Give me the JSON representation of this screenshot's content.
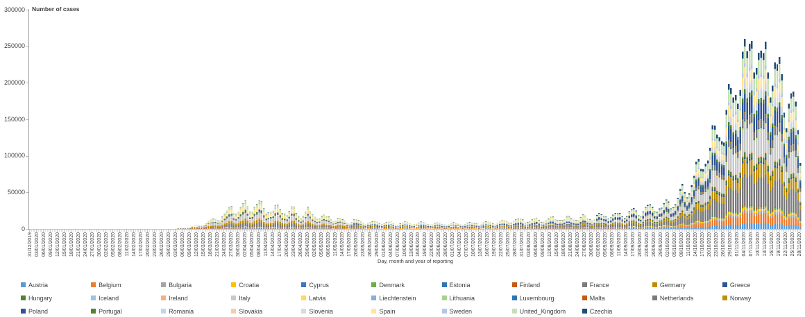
{
  "chart_data": {
    "type": "bar",
    "stacked": true,
    "ylabel": "Number of cases",
    "xlabel": "Day, month and year of reporting",
    "ylim": [
      0,
      300000
    ],
    "yticks": [
      0,
      50000,
      100000,
      150000,
      200000,
      250000,
      300000
    ],
    "grid": false,
    "legend_position": "bottom",
    "categories": [
      "31/12/2019",
      "03/01/2020",
      "06/01/2020",
      "09/01/2020",
      "12/01/2020",
      "15/01/2020",
      "18/01/2020",
      "21/01/2020",
      "24/01/2020",
      "27/01/2020",
      "30/01/2020",
      "02/02/2020",
      "05/02/2020",
      "08/02/2020",
      "11/02/2020",
      "14/02/2020",
      "17/02/2020",
      "20/02/2020",
      "23/02/2020",
      "26/02/2020",
      "29/02/2020",
      "03/03/2020",
      "06/03/2020",
      "09/03/2020",
      "12/03/2020",
      "15/03/2020",
      "18/03/2020",
      "21/03/2020",
      "24/03/2020",
      "27/03/2020",
      "30/03/2020",
      "02/04/2020",
      "05/04/2020",
      "08/04/2020",
      "11/04/2020",
      "14/04/2020",
      "17/04/2020",
      "20/04/2020",
      "23/04/2020",
      "26/04/2020",
      "29/04/2020",
      "02/05/2020",
      "05/05/2020",
      "08/05/2020",
      "11/05/2020",
      "14/05/2020",
      "17/05/2020",
      "20/05/2020",
      "23/05/2020",
      "26/05/2020",
      "29/05/2020",
      "01/06/2020",
      "04/06/2020",
      "07/06/2020",
      "10/06/2020",
      "13/06/2020",
      "16/06/2020",
      "19/06/2020",
      "22/06/2020",
      "25/06/2020",
      "28/06/2020",
      "01/07/2020",
      "04/07/2020",
      "07/07/2020",
      "10/07/2020",
      "13/07/2020",
      "16/07/2020",
      "19/07/2020",
      "22/07/2020",
      "25/07/2020",
      "28/07/2020",
      "31/07/2020",
      "03/08/2020",
      "06/08/2020",
      "09/08/2020",
      "12/08/2020",
      "15/08/2020",
      "18/08/2020",
      "21/08/2020",
      "24/08/2020",
      "27/08/2020",
      "30/08/2020",
      "02/09/2020",
      "05/09/2020",
      "08/09/2020",
      "11/09/2020",
      "14/09/2020",
      "17/09/2020",
      "20/09/2020",
      "23/09/2020",
      "26/09/2020",
      "29/09/2020",
      "02/10/2020",
      "05/10/2020",
      "08/10/2020",
      "11/10/2020",
      "14/10/2020",
      "17/10/2020",
      "20/10/2020",
      "23/10/2020",
      "26/10/2020",
      "29/10/2020",
      "01/11/2020",
      "04/11/2020",
      "07/11/2020",
      "10/11/2020",
      "13/11/2020",
      "16/11/2020",
      "19/11/2020",
      "22/11/2020",
      "25/11/2020",
      "28/11/2020"
    ],
    "totals": [
      0,
      0,
      0,
      0,
      0,
      0,
      1,
      2,
      3,
      5,
      8,
      10,
      12,
      14,
      15,
      12,
      10,
      14,
      70,
      180,
      400,
      800,
      1600,
      2800,
      4500,
      7000,
      11000,
      15000,
      18000,
      30000,
      24000,
      33000,
      29000,
      33500,
      27000,
      24000,
      30000,
      21000,
      27000,
      17500,
      24000,
      19000,
      15500,
      17500,
      12500,
      12000,
      9500,
      11500,
      9500,
      8500,
      9800,
      7800,
      8800,
      7200,
      8500,
      8200,
      7400,
      8600,
      7000,
      7600,
      6800,
      7400,
      7800,
      7200,
      8400,
      7600,
      9200,
      8200,
      10200,
      10800,
      11400,
      12600,
      11000,
      13200,
      11800,
      14000,
      14800,
      12600,
      16200,
      13400,
      16800,
      14200,
      17400,
      19600,
      16400,
      21500,
      18500,
      25500,
      22000,
      28500,
      30500,
      26500,
      38000,
      34000,
      52000,
      56000,
      76000,
      96000,
      105000,
      140000,
      132000,
      185000,
      195000,
      232000,
      263000,
      215000,
      247000,
      198000,
      222000,
      165000,
      176000,
      112000
    ],
    "countries": [
      {
        "name": "Austria",
        "color": "#5B9BD5"
      },
      {
        "name": "Belgium",
        "color": "#ED7D31"
      },
      {
        "name": "Bulgaria",
        "color": "#A5A5A5"
      },
      {
        "name": "Croatia",
        "color": "#FFC000"
      },
      {
        "name": "Cyprus",
        "color": "#4472C4"
      },
      {
        "name": "Denmark",
        "color": "#70AD47"
      },
      {
        "name": "Estonia",
        "color": "#2E75B6"
      },
      {
        "name": "Finland",
        "color": "#C55A11"
      },
      {
        "name": "France",
        "color": "#7B7B7B"
      },
      {
        "name": "Germany",
        "color": "#BF8F00"
      },
      {
        "name": "Greece",
        "color": "#2F5597"
      },
      {
        "name": "Hungary",
        "color": "#548235"
      },
      {
        "name": "Iceland",
        "color": "#9DC3E6"
      },
      {
        "name": "Ireland",
        "color": "#F4B183"
      },
      {
        "name": "Italy",
        "color": "#C9C9C9"
      },
      {
        "name": "Latvia",
        "color": "#FFD966"
      },
      {
        "name": "Liechtenstein",
        "color": "#8FAADC"
      },
      {
        "name": "Lithuania",
        "color": "#A9D18E"
      },
      {
        "name": "Luxembourg",
        "color": "#2E75B6"
      },
      {
        "name": "Malta",
        "color": "#C55A11"
      },
      {
        "name": "Netherlands",
        "color": "#7B7B7B"
      },
      {
        "name": "Norway",
        "color": "#BF8F00"
      },
      {
        "name": "Poland",
        "color": "#2F5597"
      },
      {
        "name": "Portugal",
        "color": "#548235"
      },
      {
        "name": "Romania",
        "color": "#BDD7EE"
      },
      {
        "name": "Slovakia",
        "color": "#F8CBAD"
      },
      {
        "name": "Slovenia",
        "color": "#DBDBDB"
      },
      {
        "name": "Spain",
        "color": "#FFE699"
      },
      {
        "name": "Sweden",
        "color": "#B4C7E7"
      },
      {
        "name": "United_Kingdom",
        "color": "#C5E0B4"
      },
      {
        "name": "Czechia",
        "color": "#1F4E79"
      }
    ],
    "shares": {
      "spring": [
        0.02,
        0.045,
        0.002,
        0.003,
        0.001,
        0.008,
        0.002,
        0.004,
        0.14,
        0.12,
        0.002,
        0.003,
        0.003,
        0.03,
        0.18,
        0.001,
        0.0,
        0.002,
        0.004,
        0.001,
        0.045,
        0.008,
        0.015,
        0.03,
        0.012,
        0.002,
        0.002,
        0.18,
        0.025,
        0.1,
        0.01
      ],
      "summer": [
        0.025,
        0.04,
        0.015,
        0.02,
        0.002,
        0.01,
        0.002,
        0.004,
        0.15,
        0.09,
        0.015,
        0.005,
        0.002,
        0.01,
        0.03,
        0.002,
        0.0,
        0.005,
        0.01,
        0.003,
        0.05,
        0.008,
        0.06,
        0.025,
        0.11,
        0.005,
        0.005,
        0.18,
        0.03,
        0.07,
        0.017
      ],
      "autumn": [
        0.03,
        0.055,
        0.015,
        0.015,
        0.001,
        0.008,
        0.002,
        0.003,
        0.16,
        0.08,
        0.01,
        0.025,
        0.001,
        0.008,
        0.14,
        0.004,
        0.0,
        0.01,
        0.004,
        0.001,
        0.04,
        0.004,
        0.095,
        0.025,
        0.035,
        0.012,
        0.01,
        0.06,
        0.02,
        0.087,
        0.04
      ]
    },
    "periods": [
      {
        "from": 0,
        "to": 45,
        "profile": "spring"
      },
      {
        "from": 46,
        "to": 81,
        "profile": "summer"
      },
      {
        "from": 82,
        "to": 111,
        "profile": "autumn"
      }
    ]
  }
}
